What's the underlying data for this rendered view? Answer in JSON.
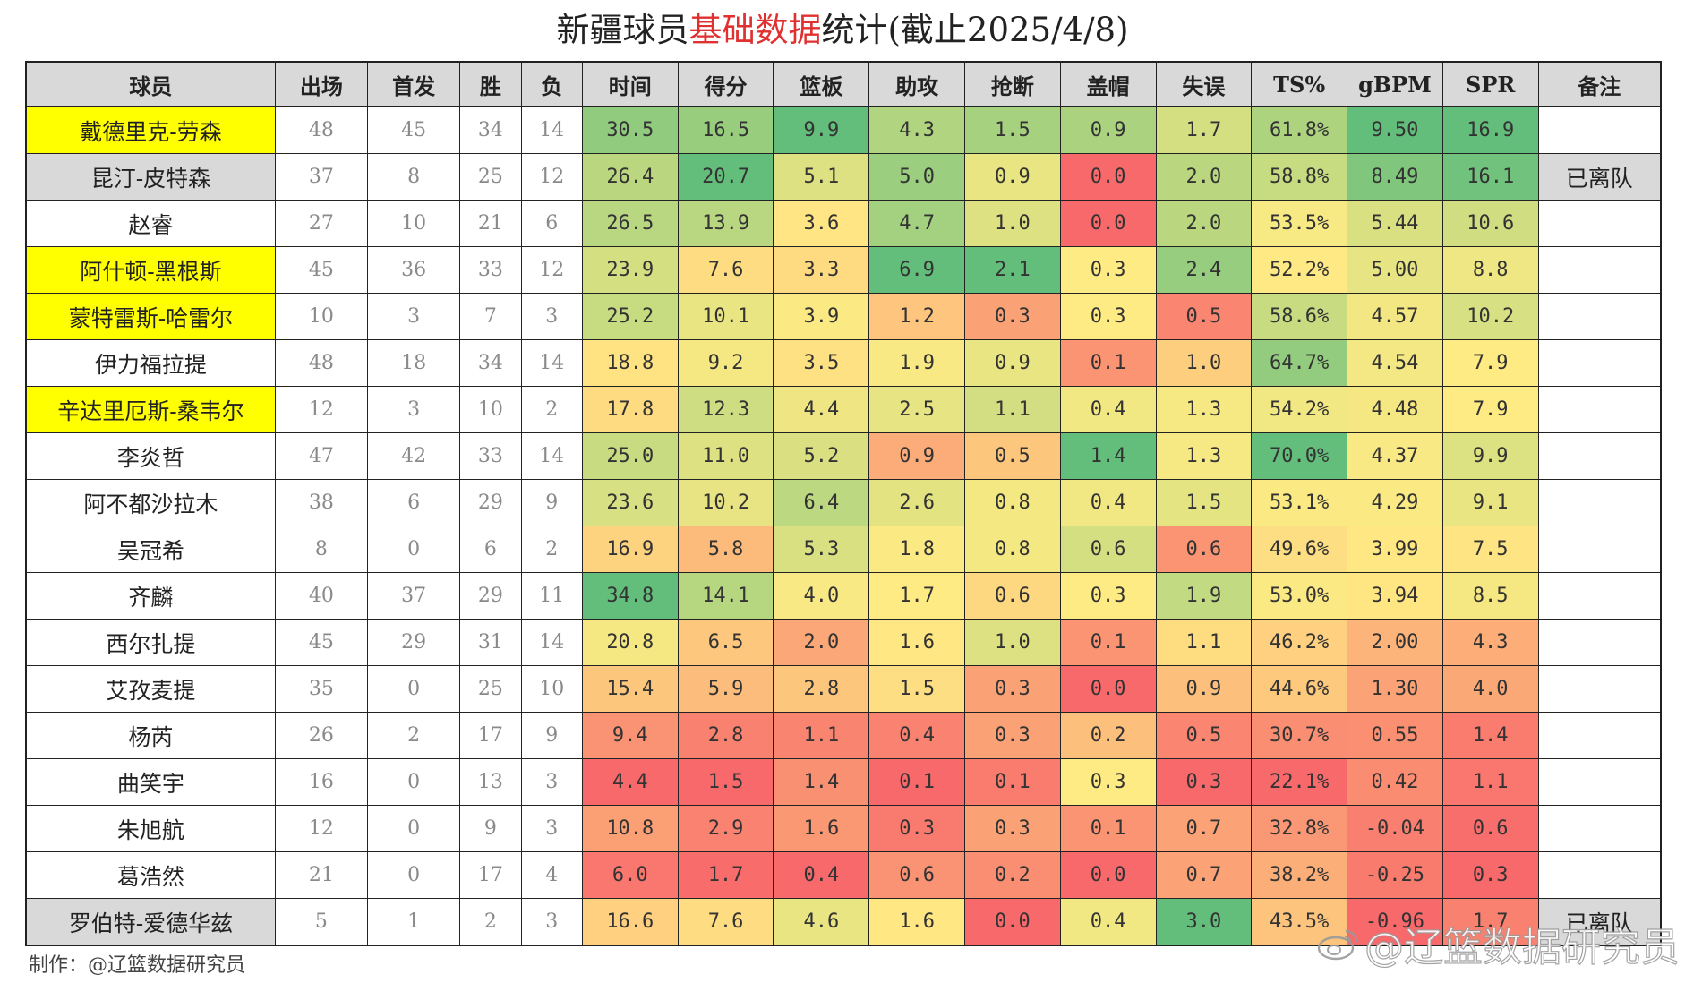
{
  "title": {
    "prefix": "新疆球员",
    "highlight": "基础数据",
    "suffix": "统计(截止2025/4/8)"
  },
  "columns": [
    "球员",
    "出场",
    "首发",
    "胜",
    "负",
    "时间",
    "得分",
    "篮板",
    "助攻",
    "抢断",
    "盖帽",
    "失误",
    "TS%",
    "gBPM",
    "SPR",
    "备注"
  ],
  "colors": {
    "yellow_highlight": "#ffff00",
    "grey_departed": "#d9d9d9",
    "scale_low": "#f8696b",
    "scale_mid": "#ffeb84",
    "scale_high": "#63be7b"
  },
  "chart_data": {
    "type": "table",
    "title": "新疆球员基础数据统计(截止2025/4/8)",
    "columns": [
      "球员",
      "出场",
      "首发",
      "胜",
      "负",
      "时间",
      "得分",
      "篮板",
      "助攻",
      "抢断",
      "盖帽",
      "失误",
      "TS%",
      "gBPM",
      "SPR",
      "备注"
    ],
    "rows": [
      {
        "name": "戴德里克-劳森",
        "highlight": "yellow",
        "gp": "48",
        "gs": "45",
        "w": "34",
        "l": "14",
        "min": "30.5",
        "pts": "16.5",
        "reb": "9.9",
        "ast": "4.3",
        "stl": "1.5",
        "blk": "0.9",
        "tov": "1.7",
        "ts": "61.8%",
        "gbpm": "9.50",
        "spr": "16.9",
        "note": ""
      },
      {
        "name": "昆汀-皮特森",
        "highlight": "grey",
        "gp": "37",
        "gs": "8",
        "w": "25",
        "l": "12",
        "min": "26.4",
        "pts": "20.7",
        "reb": "5.1",
        "ast": "5.0",
        "stl": "0.9",
        "blk": "0.0",
        "tov": "2.0",
        "ts": "58.8%",
        "gbpm": "8.49",
        "spr": "16.1",
        "note": "已离队"
      },
      {
        "name": "赵睿",
        "highlight": "none",
        "gp": "27",
        "gs": "10",
        "w": "21",
        "l": "6",
        "min": "26.5",
        "pts": "13.9",
        "reb": "3.6",
        "ast": "4.7",
        "stl": "1.0",
        "blk": "0.0",
        "tov": "2.0",
        "ts": "53.5%",
        "gbpm": "5.44",
        "spr": "10.6",
        "note": ""
      },
      {
        "name": "阿什顿-黑根斯",
        "highlight": "yellow",
        "gp": "45",
        "gs": "36",
        "w": "33",
        "l": "12",
        "min": "23.9",
        "pts": "7.6",
        "reb": "3.3",
        "ast": "6.9",
        "stl": "2.1",
        "blk": "0.3",
        "tov": "2.4",
        "ts": "52.2%",
        "gbpm": "5.00",
        "spr": "8.8",
        "note": ""
      },
      {
        "name": "蒙特雷斯-哈雷尔",
        "highlight": "yellow",
        "gp": "10",
        "gs": "3",
        "w": "7",
        "l": "3",
        "min": "25.2",
        "pts": "10.1",
        "reb": "3.9",
        "ast": "1.2",
        "stl": "0.3",
        "blk": "0.3",
        "tov": "0.5",
        "ts": "58.6%",
        "gbpm": "4.57",
        "spr": "10.2",
        "note": ""
      },
      {
        "name": "伊力福拉提",
        "highlight": "none",
        "gp": "48",
        "gs": "18",
        "w": "34",
        "l": "14",
        "min": "18.8",
        "pts": "9.2",
        "reb": "3.5",
        "ast": "1.9",
        "stl": "0.9",
        "blk": "0.1",
        "tov": "1.0",
        "ts": "64.7%",
        "gbpm": "4.54",
        "spr": "7.9",
        "note": ""
      },
      {
        "name": "辛达里厄斯-桑韦尔",
        "highlight": "yellow",
        "gp": "12",
        "gs": "3",
        "w": "10",
        "l": "2",
        "min": "17.8",
        "pts": "12.3",
        "reb": "4.4",
        "ast": "2.5",
        "stl": "1.1",
        "blk": "0.4",
        "tov": "1.3",
        "ts": "54.2%",
        "gbpm": "4.48",
        "spr": "7.9",
        "note": ""
      },
      {
        "name": "李炎哲",
        "highlight": "none",
        "gp": "47",
        "gs": "42",
        "w": "33",
        "l": "14",
        "min": "25.0",
        "pts": "11.0",
        "reb": "5.2",
        "ast": "0.9",
        "stl": "0.5",
        "blk": "1.4",
        "tov": "1.3",
        "ts": "70.0%",
        "gbpm": "4.37",
        "spr": "9.9",
        "note": ""
      },
      {
        "name": "阿不都沙拉木",
        "highlight": "none",
        "gp": "38",
        "gs": "6",
        "w": "29",
        "l": "9",
        "min": "23.6",
        "pts": "10.2",
        "reb": "6.4",
        "ast": "2.6",
        "stl": "0.8",
        "blk": "0.4",
        "tov": "1.5",
        "ts": "53.1%",
        "gbpm": "4.29",
        "spr": "9.1",
        "note": ""
      },
      {
        "name": "吴冠希",
        "highlight": "none",
        "gp": "8",
        "gs": "0",
        "w": "6",
        "l": "2",
        "min": "16.9",
        "pts": "5.8",
        "reb": "5.3",
        "ast": "1.8",
        "stl": "0.8",
        "blk": "0.6",
        "tov": "0.6",
        "ts": "49.6%",
        "gbpm": "3.99",
        "spr": "7.5",
        "note": ""
      },
      {
        "name": "齐麟",
        "highlight": "none",
        "gp": "40",
        "gs": "37",
        "w": "29",
        "l": "11",
        "min": "34.8",
        "pts": "14.1",
        "reb": "4.0",
        "ast": "1.7",
        "stl": "0.6",
        "blk": "0.3",
        "tov": "1.9",
        "ts": "53.0%",
        "gbpm": "3.94",
        "spr": "8.5",
        "note": ""
      },
      {
        "name": "西尔扎提",
        "highlight": "none",
        "gp": "45",
        "gs": "29",
        "w": "31",
        "l": "14",
        "min": "20.8",
        "pts": "6.5",
        "reb": "2.0",
        "ast": "1.6",
        "stl": "1.0",
        "blk": "0.1",
        "tov": "1.1",
        "ts": "46.2%",
        "gbpm": "2.00",
        "spr": "4.3",
        "note": ""
      },
      {
        "name": "艾孜麦提",
        "highlight": "none",
        "gp": "35",
        "gs": "0",
        "w": "25",
        "l": "10",
        "min": "15.4",
        "pts": "5.9",
        "reb": "2.8",
        "ast": "1.5",
        "stl": "0.3",
        "blk": "0.0",
        "tov": "0.9",
        "ts": "44.6%",
        "gbpm": "1.30",
        "spr": "4.0",
        "note": ""
      },
      {
        "name": "杨芮",
        "highlight": "none",
        "gp": "26",
        "gs": "2",
        "w": "17",
        "l": "9",
        "min": "9.4",
        "pts": "2.8",
        "reb": "1.1",
        "ast": "0.4",
        "stl": "0.3",
        "blk": "0.2",
        "tov": "0.5",
        "ts": "30.7%",
        "gbpm": "0.55",
        "spr": "1.4",
        "note": ""
      },
      {
        "name": "曲笑宇",
        "highlight": "none",
        "gp": "16",
        "gs": "0",
        "w": "13",
        "l": "3",
        "min": "4.4",
        "pts": "1.5",
        "reb": "1.4",
        "ast": "0.1",
        "stl": "0.1",
        "blk": "0.3",
        "tov": "0.3",
        "ts": "22.1%",
        "gbpm": "0.42",
        "spr": "1.1",
        "note": ""
      },
      {
        "name": "朱旭航",
        "highlight": "none",
        "gp": "12",
        "gs": "0",
        "w": "9",
        "l": "3",
        "min": "10.8",
        "pts": "2.9",
        "reb": "1.6",
        "ast": "0.3",
        "stl": "0.3",
        "blk": "0.1",
        "tov": "0.7",
        "ts": "32.8%",
        "gbpm": "-0.04",
        "spr": "0.6",
        "note": ""
      },
      {
        "name": "葛浩然",
        "highlight": "none",
        "gp": "21",
        "gs": "0",
        "w": "17",
        "l": "4",
        "min": "6.0",
        "pts": "1.7",
        "reb": "0.4",
        "ast": "0.6",
        "stl": "0.2",
        "blk": "0.0",
        "tov": "0.7",
        "ts": "38.2%",
        "gbpm": "-0.25",
        "spr": "0.3",
        "note": ""
      },
      {
        "name": "罗伯特-爱德华兹",
        "highlight": "grey",
        "gp": "5",
        "gs": "1",
        "w": "2",
        "l": "3",
        "min": "16.6",
        "pts": "7.6",
        "reb": "4.6",
        "ast": "1.6",
        "stl": "0.0",
        "blk": "0.4",
        "tov": "3.0",
        "ts": "43.5%",
        "gbpm": "-0.96",
        "spr": "1.7",
        "note": "已离队"
      }
    ]
  },
  "footer": {
    "credit": "制作：@辽篮数据研究员",
    "watermark": "@辽篮数据研究员"
  }
}
